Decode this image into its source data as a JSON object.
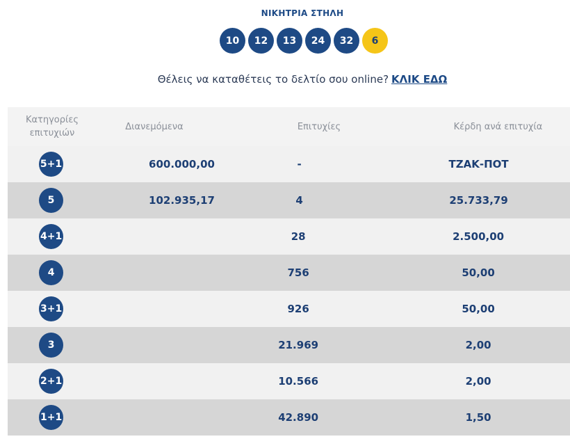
{
  "header": {
    "title": "ΝΙΚΗΤΡΙΑ ΣΤΗΛΗ"
  },
  "winning_numbers": [
    "10",
    "12",
    "13",
    "24",
    "32"
  ],
  "bonus_number": "6",
  "cta": {
    "text": "Θέλεις να καταθέτεις το δελτίο σου online?",
    "link_label": "ΚΛΙΚ ΕΔΩ"
  },
  "table": {
    "headers": [
      "Κατηγορίες επιτυχιών",
      "Διανεμόμενα",
      "Επιτυχίες",
      "Κέρδη ανά επιτυχία"
    ],
    "rows": [
      {
        "category": "5+1",
        "distributed": "600.000,00",
        "winners": "-",
        "prize": "ΤΖΑΚ-ΠΟΤ"
      },
      {
        "category": "5",
        "distributed": "102.935,17",
        "winners": "4",
        "prize": "25.733,79"
      },
      {
        "category": "4+1",
        "distributed": "",
        "winners": "28",
        "prize": "2.500,00"
      },
      {
        "category": "4",
        "distributed": "",
        "winners": "756",
        "prize": "50,00"
      },
      {
        "category": "3+1",
        "distributed": "",
        "winners": "926",
        "prize": "50,00"
      },
      {
        "category": "3",
        "distributed": "",
        "winners": "21.969",
        "prize": "2,00"
      },
      {
        "category": "2+1",
        "distributed": "",
        "winners": "10.566",
        "prize": "2,00"
      },
      {
        "category": "1+1",
        "distributed": "",
        "winners": "42.890",
        "prize": "1,50"
      }
    ]
  },
  "colors": {
    "primary_blue": "#1e4a85",
    "bonus_yellow": "#f5c518",
    "row_light": "#f1f1f1",
    "row_dark": "#d6d6d6"
  }
}
